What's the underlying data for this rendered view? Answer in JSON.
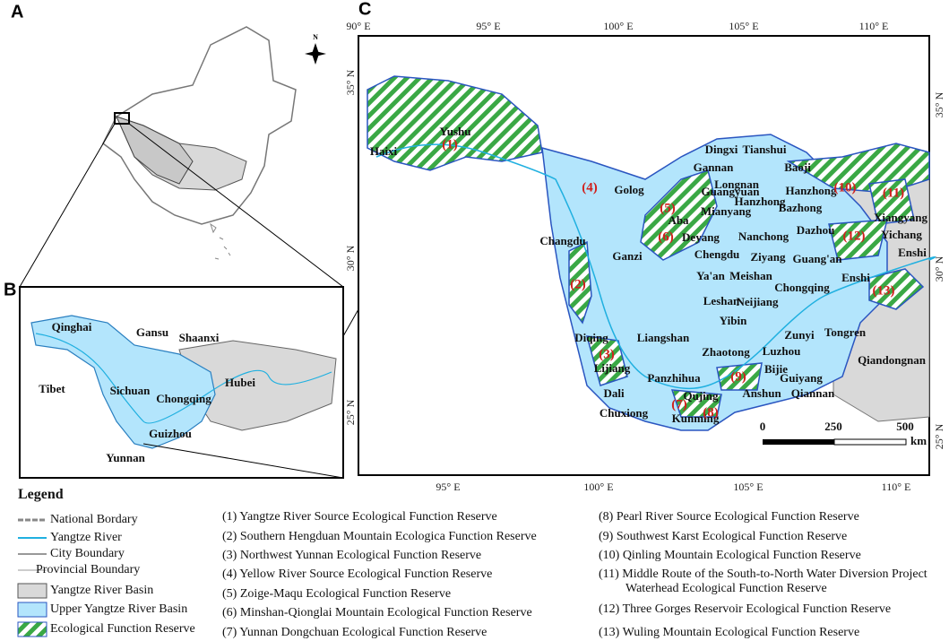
{
  "panels": {
    "a": "A",
    "b": "B",
    "c": "C"
  },
  "compass": "N",
  "panel_b": {
    "labels": [
      "Qinghai",
      "Gansu",
      "Shaanxi",
      "Tibet",
      "Sichuan",
      "Chongqing",
      "Hubei",
      "Guizhou",
      "Yunnan"
    ]
  },
  "panel_c": {
    "lon_top": [
      "90° E",
      "95° E",
      "100° E",
      "105° E",
      "110° E"
    ],
    "lon_bottom": [
      "95° E",
      "100° E",
      "105° E",
      "110° E"
    ],
    "lat_left": [
      "35° N",
      "30° N",
      "25° N"
    ],
    "lat_right": [
      "35° N",
      "30° N",
      "25° N"
    ],
    "places": [
      "Yushu",
      "Haixi",
      "Dingxi",
      "Tianshui",
      "Gannan",
      "Baoji",
      "Longnan",
      "Golog",
      "Hanzhong",
      "Hanzhong",
      "Guangyuan",
      "Mianyang",
      "Bazhong",
      "Xiangyang",
      "Aba",
      "Deyang",
      "Nanchong",
      "Dazhou",
      "Yichang",
      "Changdu",
      "Ganzi",
      "Chengdu",
      "Ziyang",
      "Guang'an",
      "Enshi",
      "Ya'an",
      "Meishan",
      "Chongqing",
      "Enshi",
      "Leshan",
      "Neijiang",
      "Yibin",
      "Zunyi",
      "Tongren",
      "Diqing",
      "Liangshan",
      "Zhaotong",
      "Luzhou",
      "Qiandongnan",
      "Lijiang",
      "Bijie",
      "Panzhihua",
      "Guiyang",
      "Anshun",
      "Qiannan",
      "Dali",
      "Qujing",
      "Chuxiong",
      "Kunming"
    ],
    "reserve_markers": [
      "(1)",
      "(2)",
      "(3)",
      "(4)",
      "(5)",
      "(6)",
      "(7)",
      "(8)",
      "(9)",
      "(10)",
      "(11)",
      "(12)",
      "(13)"
    ],
    "scale": [
      "0",
      "250",
      "500",
      "km"
    ]
  },
  "legend": {
    "title": "Legend",
    "symbols": [
      "National Bordary",
      "Yangtze River",
      "City Boundary",
      "Provincial Boundary",
      "Yangtze River Basin",
      "Upper Yangtze River Basin",
      "Ecological Function Reserve"
    ],
    "reserves": [
      "(1) Yangtze River Source Ecological Function Reserve",
      "(2) Southern Hengduan Mountain Ecologica Function Reserve",
      "(3) Northwest Yunnan Ecological Function Reserve",
      "(4) Yellow River Source Ecological Function Reserve",
      "(5) Zoige-Maqu Ecological Function Reserve",
      "(6) Minshan-Qionglai Mountain Ecological Function Reserve",
      "(7) Yunnan Dongchuan Ecological Function Reserve",
      "(8) Pearl River Source Ecological Function Reserve",
      "(9) Southwest Karst Ecological Function Reserve",
      "(10) Qinling Mountain Ecological Function Reserve",
      "(11) Middle Route of the South-to-North Water Diversion Project Waterhead Ecological Function Reserve",
      "(12) Three Gorges Reservoir Ecological Function Reserve",
      "(13) Wuling Mountain Ecological Function Reserve"
    ]
  }
}
